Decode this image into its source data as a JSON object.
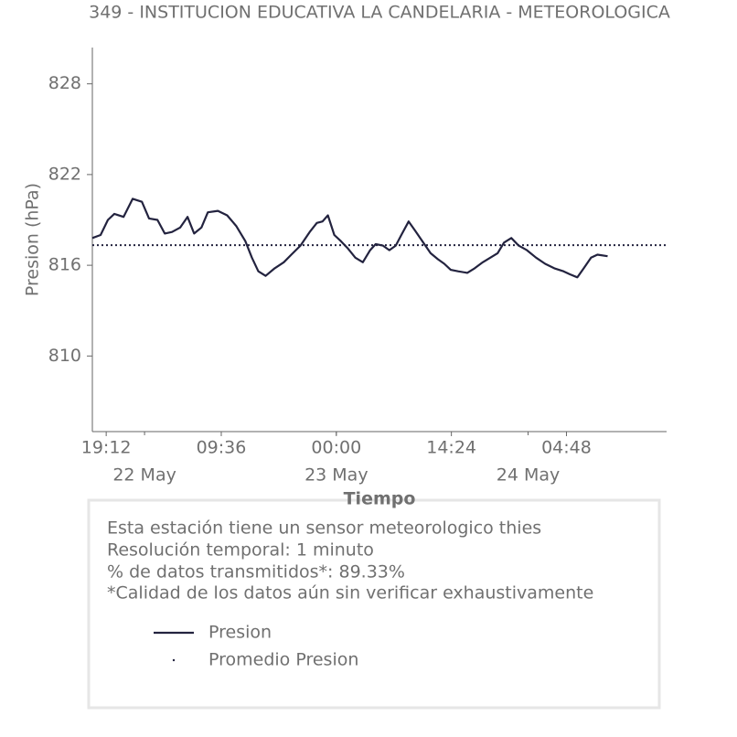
{
  "chart_data": {
    "type": "line",
    "title": "349 - INSTITUCION EDUCATIVA LA CANDELARIA - METEOROLOGICA",
    "xlabel": "Tiempo",
    "ylabel": "Presion (hPa)",
    "x": [
      "21 May 17:28",
      "21 May 18:30",
      "21 May 19:25",
      "21 May 20:13",
      "21 May 21:22",
      "21 May 22:31",
      "21 May 23:40",
      "22 May 00:34",
      "22 May 01:37",
      "22 May 02:32",
      "22 May 03:26",
      "22 May 04:28",
      "22 May 05:23",
      "22 May 06:12",
      "22 May 07:07",
      "22 May 07:55",
      "22 May 09:11",
      "22 May 10:20",
      "22 May 11:28",
      "22 May 12:37",
      "22 May 13:26",
      "22 May 14:14",
      "22 May 15:09",
      "22 May 16:17",
      "22 May 17:26",
      "22 May 18:22",
      "22 May 19:31",
      "22 May 20:40",
      "22 May 21:34",
      "22 May 22:16",
      "22 May 22:57",
      "22 May 23:45",
      "23 May 00:34",
      "23 May 01:28",
      "23 May 02:23",
      "23 May 03:19",
      "23 May 04:14",
      "23 May 04:55",
      "23 May 05:50",
      "23 May 06:38",
      "23 May 07:26",
      "23 May 08:08",
      "23 May 09:03",
      "23 May 09:51",
      "23 May 10:53",
      "23 May 11:48",
      "23 May 12:43",
      "23 May 13:31",
      "23 May 14:19",
      "23 May 15:14",
      "23 May 16:23",
      "23 May 17:19",
      "23 May 18:20",
      "23 May 19:16",
      "23 May 20:11",
      "23 May 20:59",
      "23 May 21:54",
      "23 May 22:49",
      "23 May 23:51",
      "24 May 01:00",
      "24 May 02:08",
      "24 May 03:17",
      "24 May 04:26",
      "24 May 05:14",
      "24 May 06:10",
      "24 May 06:58",
      "24 May 07:53",
      "24 May 08:41",
      "24 May 09:57"
    ],
    "series": [
      {
        "name": "Presion",
        "color": "#23233f",
        "values": [
          817.8,
          818.0,
          819.0,
          819.4,
          819.2,
          820.4,
          820.2,
          819.1,
          819.0,
          818.1,
          818.2,
          818.5,
          819.2,
          818.1,
          818.5,
          819.5,
          819.6,
          819.3,
          818.6,
          817.6,
          816.5,
          815.6,
          815.3,
          815.8,
          816.2,
          816.7,
          817.3,
          818.2,
          818.8,
          818.9,
          819.3,
          818.0,
          817.6,
          817.1,
          816.5,
          816.2,
          817.0,
          817.4,
          817.3,
          817.0,
          817.3,
          818.0,
          818.9,
          818.3,
          817.5,
          816.8,
          816.4,
          816.1,
          815.7,
          815.6,
          815.5,
          815.8,
          816.2,
          816.5,
          816.8,
          817.5,
          817.8,
          817.3,
          817.0,
          816.5,
          816.1,
          815.8,
          815.6,
          815.4,
          815.2,
          815.8,
          816.5,
          816.7,
          816.6
        ]
      }
    ],
    "average": {
      "name": "Promedio Presion",
      "value": 817.33,
      "color": "#23233f"
    },
    "xlim": [
      "21 May 17:28",
      "24 May 17:20"
    ],
    "xticks": [
      {
        "value": "21 May 19:12",
        "label": "19:12"
      },
      {
        "value": "22 May 09:36",
        "label": "09:36"
      },
      {
        "value": "23 May 00:00",
        "label": "00:00"
      },
      {
        "value": "23 May 14:24",
        "label": "14:24"
      },
      {
        "value": "24 May 04:48",
        "label": "04:48"
      }
    ],
    "date_ticks": [
      {
        "value": "22 May 00:00",
        "label": "22 May"
      },
      {
        "value": "23 May 00:00",
        "label": "23 May"
      },
      {
        "value": "24 May 00:00",
        "label": "24 May"
      }
    ],
    "ylim": [
      805,
      830.4
    ],
    "yticks": [
      810,
      816,
      822,
      828
    ]
  },
  "info": [
    "Esta estación tiene un sensor meteorologico thies",
    "Resolución temporal: 1 minuto",
    "% de datos transmitidos*: 89.33%",
    "*Calidad de los datos aún sin verificar exhaustivamente"
  ]
}
